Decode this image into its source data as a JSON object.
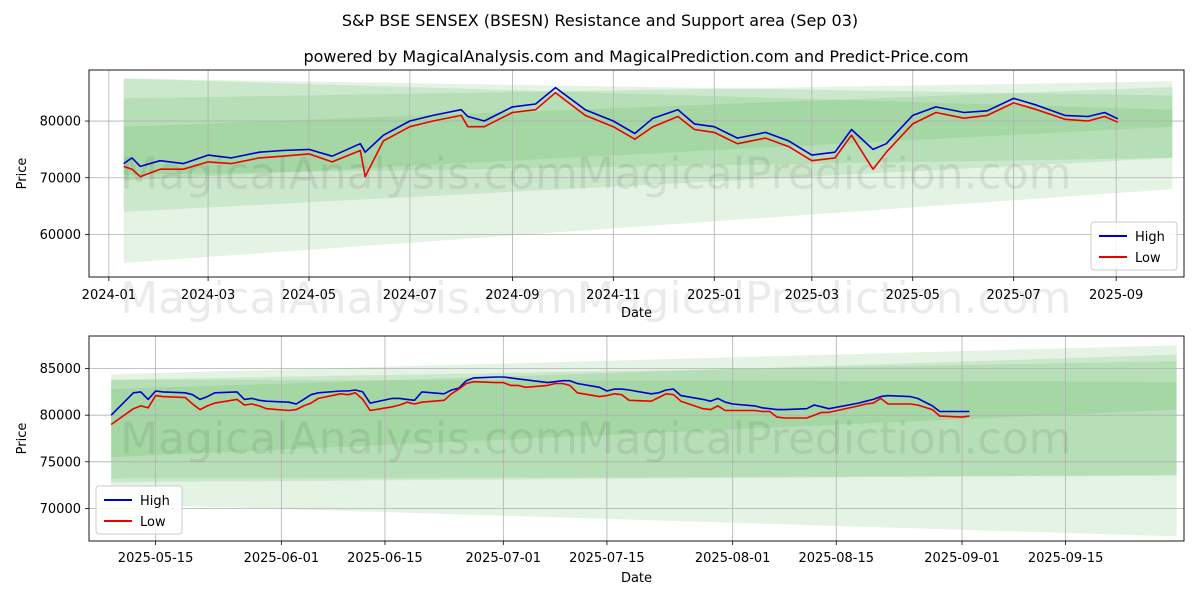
{
  "title": "S&P BSE SENSEX (BSESN) Resistance and Support area (Sep 03)",
  "subtitle": "powered by MagicalAnalysis.com and MagicalPrediction.com and Predict-Price.com",
  "watermarks": [
    "MagicalAnalysis.com",
    "MagicalPrediction.com"
  ],
  "colors": {
    "high": "#0000cc",
    "low": "#ee0000",
    "band": "#2ca02c",
    "grid": "#b0b0b0"
  },
  "chart_data": [
    {
      "type": "line",
      "panel": "full-history",
      "xlabel": "Date",
      "ylabel": "Price",
      "xlim": [
        "2023-12-20",
        "2025-10-12"
      ],
      "ylim": [
        52500,
        89000
      ],
      "x_ticks": [
        "2024-01",
        "2024-03",
        "2024-05",
        "2024-07",
        "2024-09",
        "2024-11",
        "2025-01",
        "2025-03",
        "2025-05",
        "2025-07",
        "2025-09"
      ],
      "x_tick_dates": [
        "2024-01-01",
        "2024-03-01",
        "2024-05-01",
        "2024-07-01",
        "2024-09-01",
        "2024-11-01",
        "2025-01-01",
        "2025-03-01",
        "2025-05-01",
        "2025-07-01",
        "2025-09-01"
      ],
      "y_ticks": [
        "60000",
        "70000",
        "80000"
      ],
      "y_tick_values": [
        60000,
        70000,
        80000
      ],
      "grid": true,
      "legend": "lower-right",
      "series": [
        {
          "name": "High",
          "dates": [
            "2024-01-10",
            "2024-01-15",
            "2024-01-20",
            "2024-02-01",
            "2024-02-15",
            "2024-03-01",
            "2024-03-15",
            "2024-04-01",
            "2024-04-15",
            "2024-05-01",
            "2024-05-15",
            "2024-06-01",
            "2024-06-04",
            "2024-06-15",
            "2024-07-01",
            "2024-07-15",
            "2024-08-01",
            "2024-08-05",
            "2024-08-15",
            "2024-09-01",
            "2024-09-15",
            "2024-09-27",
            "2024-10-15",
            "2024-11-01",
            "2024-11-14",
            "2024-11-25",
            "2024-12-10",
            "2024-12-20",
            "2025-01-01",
            "2025-01-15",
            "2025-02-01",
            "2025-02-15",
            "2025-03-01",
            "2025-03-15",
            "2025-03-25",
            "2025-04-07",
            "2025-04-15",
            "2025-05-01",
            "2025-05-15",
            "2025-06-01",
            "2025-06-15",
            "2025-07-01",
            "2025-07-15",
            "2025-08-01",
            "2025-08-15",
            "2025-08-25",
            "2025-09-02"
          ],
          "values": [
            72500,
            73500,
            72000,
            73000,
            72500,
            74000,
            73500,
            74500,
            74800,
            75000,
            73800,
            76000,
            74500,
            77500,
            80000,
            81000,
            82000,
            80800,
            80000,
            82500,
            83000,
            85900,
            82000,
            80000,
            77800,
            80500,
            82000,
            79500,
            79000,
            77000,
            78000,
            76500,
            74000,
            74500,
            78500,
            75000,
            76000,
            81000,
            82500,
            81500,
            81800,
            84000,
            82800,
            81000,
            80800,
            81500,
            80400
          ]
        },
        {
          "name": "Low",
          "dates": [
            "2024-01-10",
            "2024-01-15",
            "2024-01-20",
            "2024-02-01",
            "2024-02-15",
            "2024-03-01",
            "2024-03-15",
            "2024-04-01",
            "2024-04-15",
            "2024-05-01",
            "2024-05-15",
            "2024-06-01",
            "2024-06-04",
            "2024-06-15",
            "2024-07-01",
            "2024-07-15",
            "2024-08-01",
            "2024-08-05",
            "2024-08-15",
            "2024-09-01",
            "2024-09-15",
            "2024-09-27",
            "2024-10-15",
            "2024-11-01",
            "2024-11-14",
            "2024-11-25",
            "2024-12-10",
            "2024-12-20",
            "2025-01-01",
            "2025-01-15",
            "2025-02-01",
            "2025-02-15",
            "2025-03-01",
            "2025-03-15",
            "2025-03-25",
            "2025-04-07",
            "2025-04-15",
            "2025-05-01",
            "2025-05-15",
            "2025-06-01",
            "2025-06-15",
            "2025-07-01",
            "2025-07-15",
            "2025-08-01",
            "2025-08-15",
            "2025-08-25",
            "2025-09-02"
          ],
          "values": [
            72000,
            71500,
            70200,
            71500,
            71500,
            72800,
            72500,
            73500,
            73800,
            74200,
            72800,
            74800,
            70200,
            76500,
            79000,
            80000,
            81000,
            79000,
            79000,
            81500,
            82000,
            85000,
            81000,
            79000,
            76800,
            79000,
            80800,
            78500,
            78000,
            76000,
            77000,
            75500,
            73000,
            73500,
            77500,
            71500,
            74500,
            79500,
            81500,
            80500,
            81000,
            83200,
            82000,
            80300,
            80000,
            80800,
            79800
          ]
        }
      ],
      "bands": [
        {
          "start": "2024-01-10",
          "end": "2025-10-05",
          "upper": [
            87500,
            84500
          ],
          "lower": [
            55000,
            68000
          ]
        },
        {
          "start": "2024-01-10",
          "end": "2025-10-05",
          "upper": [
            84000,
            87000
          ],
          "lower": [
            64000,
            73500
          ]
        },
        {
          "start": "2024-01-10",
          "end": "2025-10-05",
          "upper": [
            87500,
            82000
          ],
          "lower": [
            69500,
            79000
          ]
        },
        {
          "start": "2024-01-10",
          "end": "2025-10-05",
          "upper": [
            79000,
            86000
          ],
          "lower": [
            70500,
            73500
          ]
        }
      ]
    },
    {
      "type": "line",
      "panel": "recent",
      "xlabel": "Date",
      "ylabel": "Price",
      "xlim": [
        "2025-05-06",
        "2025-10-01"
      ],
      "ylim": [
        66500,
        88500
      ],
      "x_ticks": [
        "2025-05-15",
        "2025-06-01",
        "2025-06-15",
        "2025-07-01",
        "2025-07-15",
        "2025-08-01",
        "2025-08-15",
        "2025-09-01",
        "2025-09-15"
      ],
      "y_ticks": [
        "70000",
        "75000",
        "80000",
        "85000"
      ],
      "y_tick_values": [
        70000,
        75000,
        80000,
        85000
      ],
      "grid": true,
      "legend": "lower-left",
      "series": [
        {
          "name": "High",
          "dates": [
            "2025-05-09",
            "2025-05-12",
            "2025-05-13",
            "2025-05-14",
            "2025-05-15",
            "2025-05-16",
            "2025-05-19",
            "2025-05-20",
            "2025-05-21",
            "2025-05-22",
            "2025-05-23",
            "2025-05-26",
            "2025-05-27",
            "2025-05-28",
            "2025-05-29",
            "2025-05-30",
            "2025-06-02",
            "2025-06-03",
            "2025-06-04",
            "2025-06-05",
            "2025-06-06",
            "2025-06-09",
            "2025-06-10",
            "2025-06-11",
            "2025-06-12",
            "2025-06-13",
            "2025-06-16",
            "2025-06-17",
            "2025-06-18",
            "2025-06-19",
            "2025-06-20",
            "2025-06-23",
            "2025-06-24",
            "2025-06-25",
            "2025-06-26",
            "2025-06-27",
            "2025-06-30",
            "2025-07-01",
            "2025-07-02",
            "2025-07-03",
            "2025-07-04",
            "2025-07-07",
            "2025-07-08",
            "2025-07-09",
            "2025-07-10",
            "2025-07-11",
            "2025-07-14",
            "2025-07-15",
            "2025-07-16",
            "2025-07-17",
            "2025-07-18",
            "2025-07-21",
            "2025-07-22",
            "2025-07-23",
            "2025-07-24",
            "2025-07-25",
            "2025-07-28",
            "2025-07-29",
            "2025-07-30",
            "2025-07-31",
            "2025-08-01",
            "2025-08-04",
            "2025-08-05",
            "2025-08-06",
            "2025-08-07",
            "2025-08-08",
            "2025-08-11",
            "2025-08-12",
            "2025-08-13",
            "2025-08-14",
            "2025-08-18",
            "2025-08-19",
            "2025-08-20",
            "2025-08-21",
            "2025-08-22",
            "2025-08-25",
            "2025-08-26",
            "2025-08-28",
            "2025-08-29",
            "2025-09-01",
            "2025-09-02"
          ],
          "values": [
            80000,
            82400,
            82500,
            81700,
            82600,
            82500,
            82400,
            82200,
            81700,
            82000,
            82400,
            82500,
            81700,
            81800,
            81600,
            81500,
            81400,
            81200,
            81700,
            82200,
            82400,
            82600,
            82600,
            82700,
            82500,
            81300,
            81800,
            81800,
            81700,
            81600,
            82500,
            82300,
            82700,
            82900,
            83700,
            84000,
            84100,
            84100,
            84000,
            83900,
            83800,
            83500,
            83600,
            83700,
            83700,
            83400,
            83000,
            82600,
            82800,
            82800,
            82700,
            82300,
            82400,
            82700,
            82800,
            82100,
            81700,
            81500,
            81800,
            81400,
            81200,
            81000,
            80800,
            80700,
            80600,
            80600,
            80700,
            81100,
            80900,
            80700,
            81300,
            81500,
            81700,
            82000,
            82100,
            82000,
            81800,
            81000,
            80400,
            80400,
            80400
          ]
        },
        {
          "name": "Low",
          "dates": [
            "2025-05-09",
            "2025-05-12",
            "2025-05-13",
            "2025-05-14",
            "2025-05-15",
            "2025-05-16",
            "2025-05-19",
            "2025-05-20",
            "2025-05-21",
            "2025-05-22",
            "2025-05-23",
            "2025-05-26",
            "2025-05-27",
            "2025-05-28",
            "2025-05-29",
            "2025-05-30",
            "2025-06-02",
            "2025-06-03",
            "2025-06-04",
            "2025-06-05",
            "2025-06-06",
            "2025-06-09",
            "2025-06-10",
            "2025-06-11",
            "2025-06-12",
            "2025-06-13",
            "2025-06-16",
            "2025-06-17",
            "2025-06-18",
            "2025-06-19",
            "2025-06-20",
            "2025-06-23",
            "2025-06-24",
            "2025-06-25",
            "2025-06-26",
            "2025-06-27",
            "2025-06-30",
            "2025-07-01",
            "2025-07-02",
            "2025-07-03",
            "2025-07-04",
            "2025-07-07",
            "2025-07-08",
            "2025-07-09",
            "2025-07-10",
            "2025-07-11",
            "2025-07-14",
            "2025-07-15",
            "2025-07-16",
            "2025-07-17",
            "2025-07-18",
            "2025-07-21",
            "2025-07-22",
            "2025-07-23",
            "2025-07-24",
            "2025-07-25",
            "2025-07-28",
            "2025-07-29",
            "2025-07-30",
            "2025-07-31",
            "2025-08-01",
            "2025-08-04",
            "2025-08-05",
            "2025-08-06",
            "2025-08-07",
            "2025-08-08",
            "2025-08-11",
            "2025-08-12",
            "2025-08-13",
            "2025-08-14",
            "2025-08-18",
            "2025-08-19",
            "2025-08-20",
            "2025-08-21",
            "2025-08-22",
            "2025-08-25",
            "2025-08-26",
            "2025-08-28",
            "2025-08-29",
            "2025-09-01",
            "2025-09-02"
          ],
          "values": [
            79000,
            80700,
            81000,
            80800,
            82100,
            82000,
            81900,
            81200,
            80600,
            81000,
            81300,
            81700,
            81100,
            81200,
            81000,
            80700,
            80500,
            80600,
            81000,
            81300,
            81800,
            82300,
            82200,
            82400,
            81700,
            80500,
            80900,
            81100,
            81400,
            81200,
            81400,
            81600,
            82300,
            82800,
            83400,
            83600,
            83500,
            83500,
            83200,
            83200,
            83000,
            83200,
            83400,
            83400,
            83200,
            82400,
            82000,
            82100,
            82300,
            82200,
            81600,
            81500,
            81900,
            82300,
            82200,
            81500,
            80700,
            80600,
            81000,
            80500,
            80500,
            80500,
            80400,
            80400,
            79800,
            79700,
            79700,
            80000,
            80300,
            80300,
            81000,
            81200,
            81300,
            81800,
            81200,
            81200,
            81100,
            80600,
            79900,
            79800,
            79900
          ]
        }
      ],
      "bands": [
        {
          "start": "2025-05-09",
          "end": "2025-09-30",
          "upper": [
            84400,
            87500
          ],
          "lower": [
            70500,
            67000
          ]
        },
        {
          "start": "2025-05-09",
          "end": "2025-09-30",
          "upper": [
            83800,
            85800
          ],
          "lower": [
            72800,
            73600
          ]
        },
        {
          "start": "2025-05-09",
          "end": "2025-09-30",
          "upper": [
            83800,
            83600
          ],
          "lower": [
            75500,
            80600
          ]
        },
        {
          "start": "2025-05-09",
          "end": "2025-09-30",
          "upper": [
            82800,
            86500
          ],
          "lower": [
            73200,
            73500
          ]
        }
      ]
    }
  ]
}
